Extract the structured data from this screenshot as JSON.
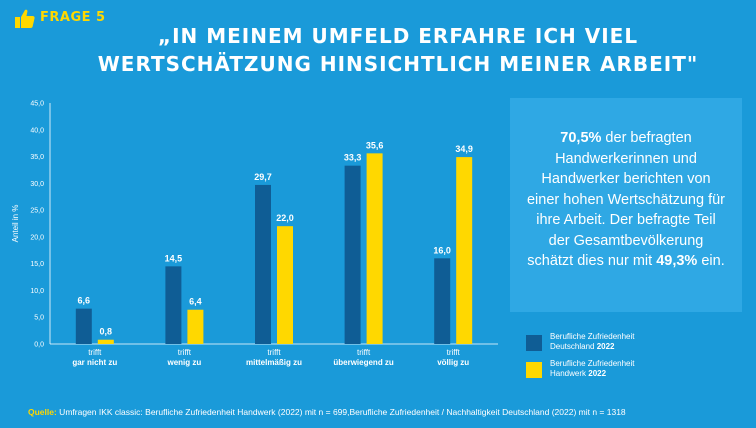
{
  "header": {
    "frage_label": "FRAGE 5",
    "title_line1": "„IN MEINEM UMFELD ERFAHRE ICH VIEL",
    "title_line2": "WERTSCHÄTZUNG HINSICHTLICH MEINER ARBEIT\""
  },
  "info_box": {
    "pct1": "70,5%",
    "text1": " der befragten Handwerkerinnen und Handwerker berichten von einer hohen Wertschätzung für ihre Arbeit. Der befragte Teil der Gesamtbevölkerung schätzt dies nur mit ",
    "pct2": "49,3%",
    "text2": " ein."
  },
  "legend": [
    {
      "line1": "Berufliche Zufriedenheit",
      "line2_prefix": "Deutschland ",
      "line2_bold": "2022",
      "color": "#0f5d95"
    },
    {
      "line1": "Berufliche Zufriedenheit",
      "line2_prefix": "Handwerk ",
      "line2_bold": "2022",
      "color": "#ffd800"
    }
  ],
  "source": {
    "label": "Quelle:",
    "text": " Umfragen IKK classic: Berufliche Zufriedenheit Handwerk (2022) mit n = 699,Berufliche Zufriedenheit / Nachhaltigkeit Deutschland (2022) mit n = 1318"
  },
  "colors": {
    "background": "#1a9ad9",
    "dark_blue": "#0f5d95",
    "yellow": "#ffd800"
  },
  "chart_data": {
    "type": "bar",
    "ylabel": "Anteil in %",
    "ylim": [
      0,
      45
    ],
    "yticks": [
      "0,0",
      "5,0",
      "10,0",
      "15,0",
      "20,0",
      "25,0",
      "30,0",
      "35,0",
      "40,0",
      "45,0"
    ],
    "categories": [
      {
        "line1": "trifft",
        "line2": "gar nicht zu"
      },
      {
        "line1": "trifft",
        "line2": "wenig zu"
      },
      {
        "line1": "trifft",
        "line2": "mittelmäßig zu"
      },
      {
        "line1": "trifft",
        "line2": "überwiegend zu"
      },
      {
        "line1": "trifft",
        "line2": "völlig zu"
      }
    ],
    "series": [
      {
        "name": "Berufliche Zufriedenheit Deutschland 2022",
        "color": "#0f5d95",
        "values": [
          6.6,
          14.5,
          29.7,
          33.3,
          16.0
        ],
        "labels": [
          "6,6",
          "14,5",
          "29,7",
          "33,3",
          "16,0"
        ]
      },
      {
        "name": "Berufliche Zufriedenheit Handwerk 2022",
        "color": "#ffd800",
        "values": [
          0.8,
          6.4,
          22.0,
          35.6,
          34.9
        ],
        "labels": [
          "0,8",
          "6,4",
          "22,0",
          "35,6",
          "34,9"
        ]
      }
    ]
  }
}
